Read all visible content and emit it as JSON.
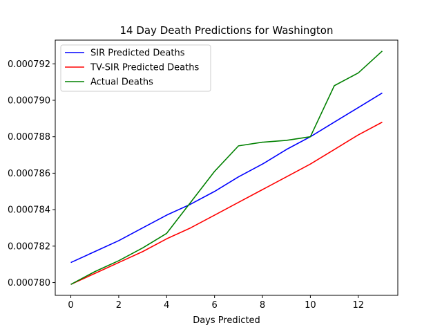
{
  "chart_data": {
    "type": "line",
    "title": "14 Day Death Predictions for Washington",
    "xlabel": "Days Predicted",
    "ylabel": "",
    "xlim": [
      -0.65,
      13.65
    ],
    "ylim": [
      0.0007793,
      0.0007933
    ],
    "x_ticks": [
      0,
      2,
      4,
      6,
      8,
      10,
      12
    ],
    "x_tick_labels": [
      "0",
      "2",
      "4",
      "6",
      "8",
      "10",
      "12"
    ],
    "y_ticks": [
      0.00078,
      0.000782,
      0.000784,
      0.000786,
      0.000788,
      0.00079,
      0.000792
    ],
    "y_tick_labels": [
      "0.000780",
      "0.000782",
      "0.000784",
      "0.000786",
      "0.000788",
      "0.000790",
      "0.000792"
    ],
    "grid": false,
    "legend_position": "upper-left",
    "x": [
      0,
      1,
      2,
      3,
      4,
      5,
      6,
      7,
      8,
      9,
      10,
      11,
      12,
      13
    ],
    "series": [
      {
        "name": "SIR Predicted Deaths",
        "color": "#0000ff",
        "values": [
          0.0007811,
          0.0007817,
          0.0007823,
          0.000783,
          0.0007837,
          0.0007843,
          0.000785,
          0.0007858,
          0.0007865,
          0.0007873,
          0.000788,
          0.0007888,
          0.0007896,
          0.0007904
        ]
      },
      {
        "name": "TV-SIR Predicted Deaths",
        "color": "#ff0000",
        "values": [
          0.0007799,
          0.0007805,
          0.0007811,
          0.0007817,
          0.0007824,
          0.000783,
          0.0007837,
          0.0007844,
          0.0007851,
          0.0007858,
          0.0007865,
          0.0007873,
          0.0007881,
          0.0007888
        ]
      },
      {
        "name": "Actual Deaths",
        "color": "#008000",
        "values": [
          0.0007799,
          0.0007806,
          0.0007812,
          0.0007819,
          0.0007827,
          0.0007844,
          0.0007861,
          0.0007875,
          0.0007877,
          0.0007878,
          0.000788,
          0.0007908,
          0.0007915,
          0.0007927
        ]
      }
    ]
  }
}
